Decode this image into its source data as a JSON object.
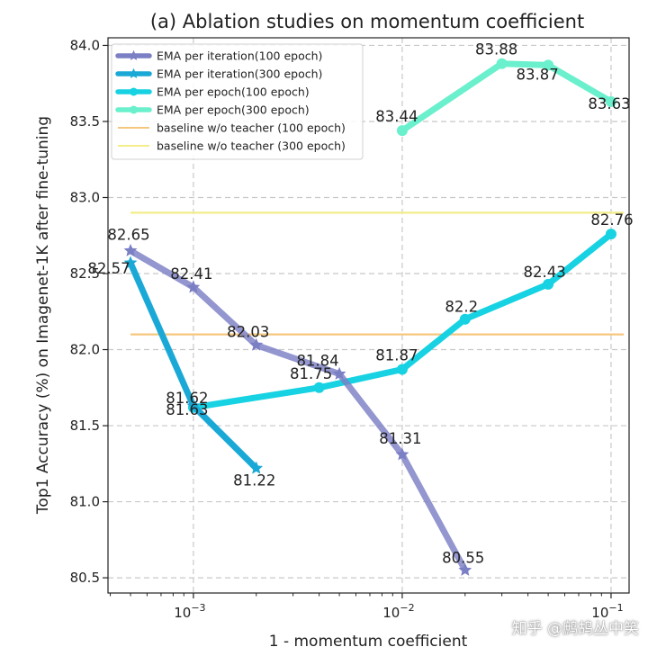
{
  "chart_data": {
    "type": "line",
    "title": "(a) Ablation studies on momentum coefficient",
    "xlabel": "1 - momentum coefficient",
    "ylabel": "Top1 Accuracy (%) on Imagenet-1K after fine-tuning",
    "xscale": "log",
    "xlim": [
      0.00039,
      0.122
    ],
    "ylim": [
      80.4,
      84.05
    ],
    "grid": true,
    "legend_position": "top-left",
    "x_ticks": [
      {
        "value": 0.001,
        "base": "10",
        "exp": "−3"
      },
      {
        "value": 0.01,
        "base": "10",
        "exp": "−2"
      },
      {
        "value": 0.1,
        "base": "10",
        "exp": "−1"
      }
    ],
    "y_ticks": [
      {
        "value": 80.5,
        "label": "80.5"
      },
      {
        "value": 81.0,
        "label": "81.0"
      },
      {
        "value": 81.5,
        "label": "81.5"
      },
      {
        "value": 82.0,
        "label": "82.0"
      },
      {
        "value": 82.5,
        "label": "82.5"
      },
      {
        "value": 83.0,
        "label": "83.0"
      },
      {
        "value": 83.5,
        "label": "83.5"
      },
      {
        "value": 84.0,
        "label": "84.0"
      }
    ],
    "series": [
      {
        "name": "EMA per iteration(100 epoch)",
        "color": "#7b7fc4",
        "marker": "star",
        "x": [
          0.0005,
          0.001,
          0.002,
          0.005,
          0.01,
          0.02
        ],
        "y": [
          82.65,
          82.41,
          82.03,
          81.84,
          81.31,
          80.55
        ],
        "labels": [
          "82.65",
          "82.41",
          "82.03",
          "81.84",
          "81.31",
          "80.55"
        ]
      },
      {
        "name": "EMA per iteration(300 epoch)",
        "color": "#1aa9d6",
        "marker": "star",
        "x": [
          0.0005,
          0.001,
          0.002
        ],
        "y": [
          82.57,
          81.63,
          81.22
        ],
        "labels": [
          "82.57",
          "81.63",
          "81.22"
        ]
      },
      {
        "name": "EMA per epoch(100 epoch)",
        "color": "#16d2e2",
        "marker": "circle",
        "x": [
          0.001,
          0.004,
          0.01,
          0.02,
          0.05,
          0.1
        ],
        "y": [
          81.62,
          81.75,
          81.87,
          82.2,
          82.43,
          82.76
        ],
        "labels": [
          "81.62",
          "81.75",
          "81.87",
          "82.2",
          "82.43",
          "82.76"
        ]
      },
      {
        "name": "EMA per epoch(300 epoch)",
        "color": "#6af0cc",
        "marker": "circle",
        "x": [
          0.01,
          0.03,
          0.05,
          0.1
        ],
        "y": [
          83.44,
          83.88,
          83.87,
          83.63
        ],
        "labels": [
          "83.44",
          "83.88",
          "83.87",
          "83.63"
        ]
      }
    ],
    "baselines": [
      {
        "name": "baseline w/o teacher (100 epoch)",
        "color": "#f5c77e",
        "y": 82.1,
        "x": [
          0.0005,
          0.115
        ]
      },
      {
        "name": "baseline w/o teacher (300 epoch)",
        "color": "#f3ee8a",
        "y": 82.9,
        "x": [
          0.0005,
          0.115
        ]
      }
    ]
  },
  "watermark": "知乎 @鹧鸪丛中笑"
}
